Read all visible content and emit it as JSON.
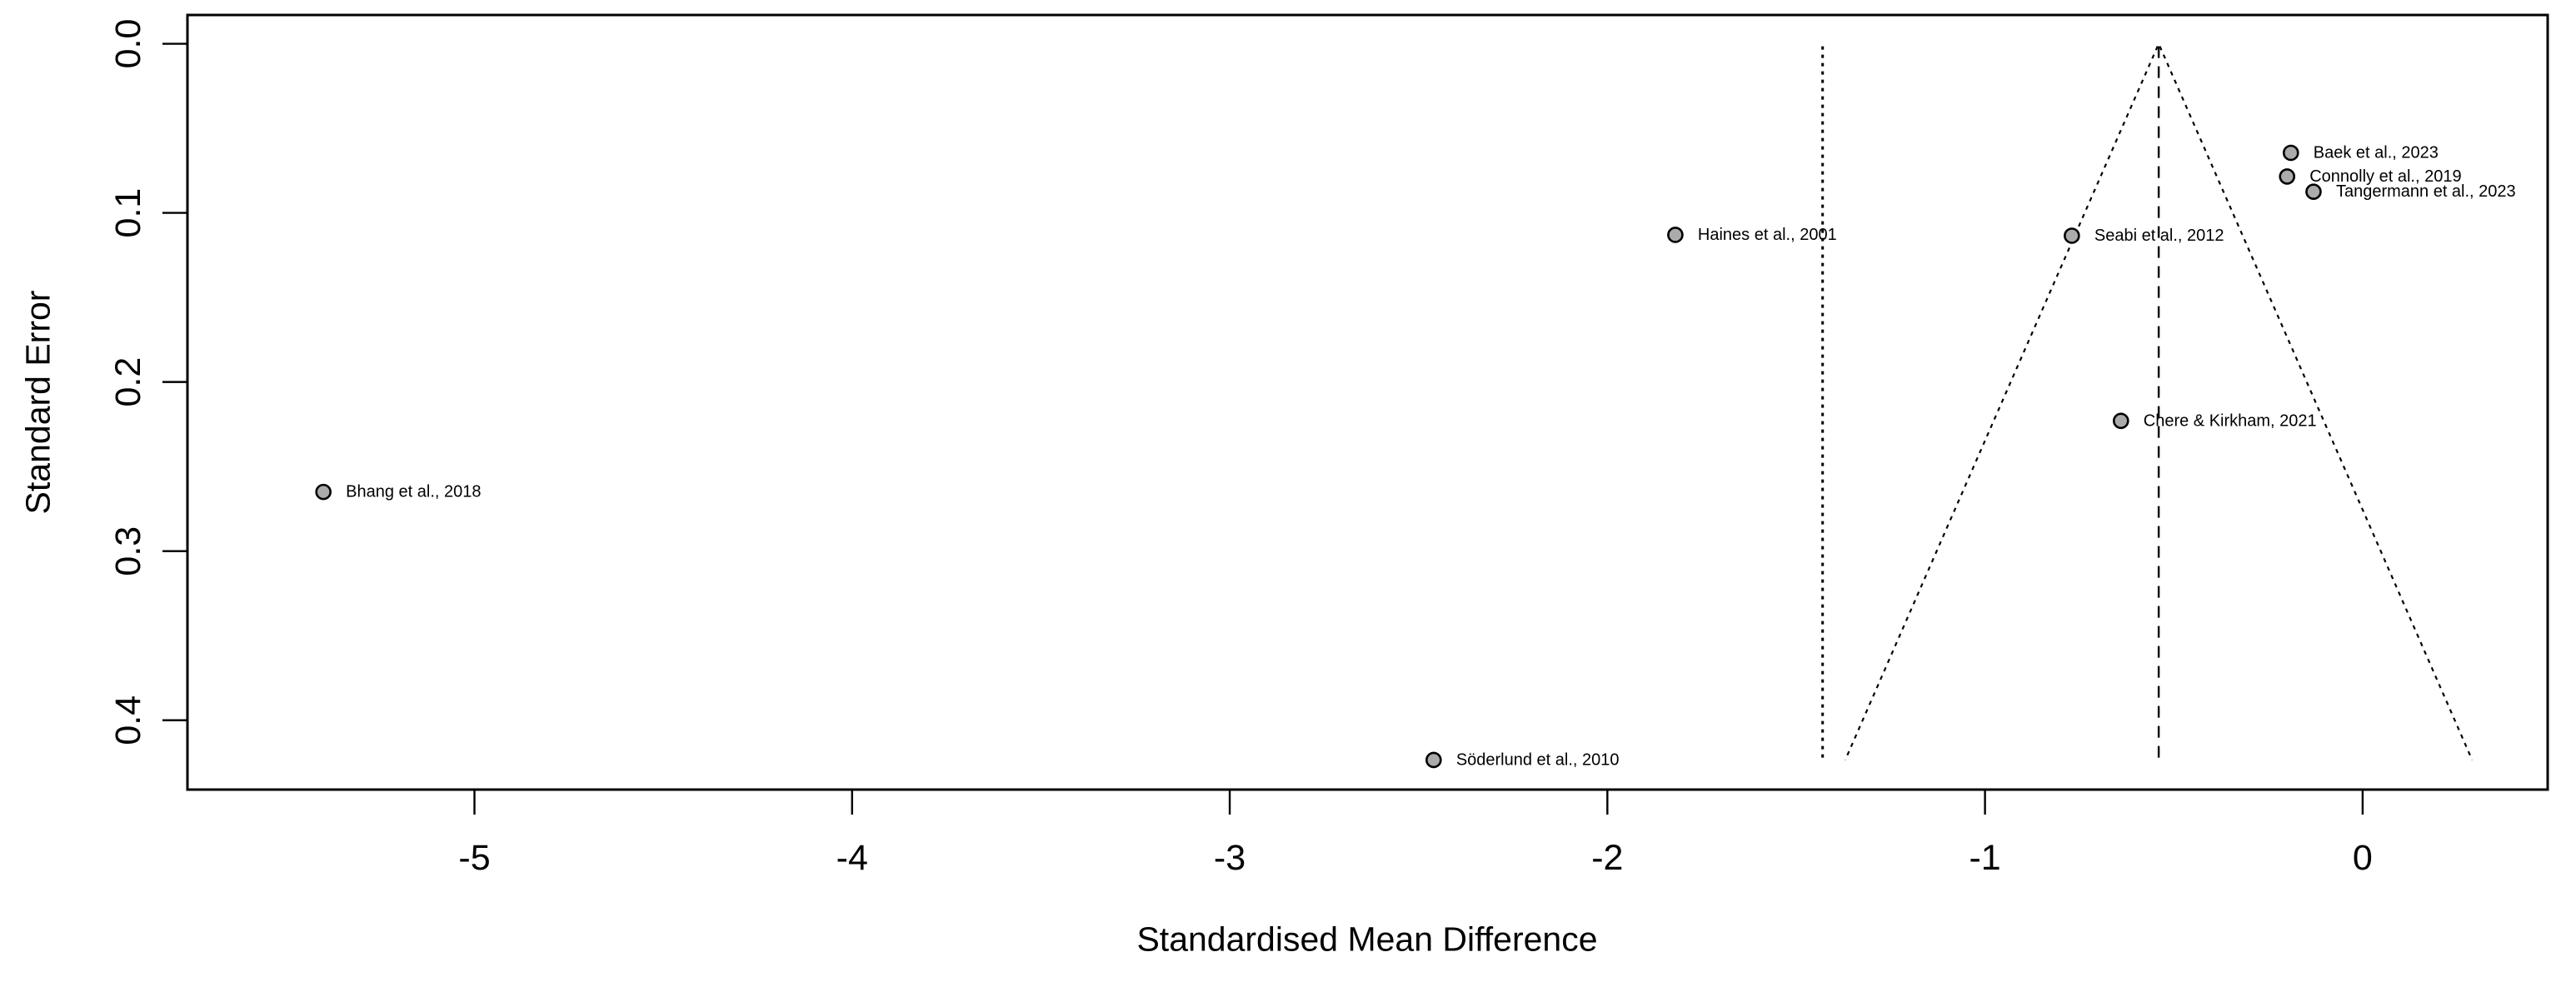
{
  "chart_data": {
    "type": "scatter",
    "subtype": "funnel-plot",
    "title": "",
    "xlabel": "Standardised Mean Difference",
    "ylabel": "Standard Error",
    "grid": "off",
    "legend": "none",
    "x_axis": {
      "range": [
        -5.76,
        0.49
      ],
      "ticks": [
        {
          "value": -5,
          "label": "-5"
        },
        {
          "value": -4,
          "label": "-4"
        },
        {
          "value": -3,
          "label": "-3"
        },
        {
          "value": -2,
          "label": "-2"
        },
        {
          "value": -1,
          "label": "-1"
        },
        {
          "value": 0,
          "label": "0"
        }
      ]
    },
    "y_axis": {
      "range": [
        -0.017,
        0.441
      ],
      "direction": "increasing-downward",
      "ticks": [
        {
          "value": 0.0,
          "label": "0.0"
        },
        {
          "value": 0.1,
          "label": "0.1"
        },
        {
          "value": 0.2,
          "label": "0.2"
        },
        {
          "value": 0.3,
          "label": "0.3"
        },
        {
          "value": 0.4,
          "label": "0.4"
        }
      ]
    },
    "points": [
      {
        "label": "Bhang et al., 2018",
        "x": -5.4,
        "se": 0.265
      },
      {
        "label": "Söderlund et al., 2010",
        "x": -2.46,
        "se": 0.4235
      },
      {
        "label": "Haines et al., 2001",
        "x": -1.82,
        "se": 0.113
      },
      {
        "label": "Seabi et al., 2012",
        "x": -0.77,
        "se": 0.1135
      },
      {
        "label": "Chere & Kirkham, 2021",
        "x": -0.64,
        "se": 0.223
      },
      {
        "label": "Baek et al., 2023",
        "x": -0.19,
        "se": 0.0645
      },
      {
        "label": "Connolly et al., 2019",
        "x": -0.2,
        "se": 0.0785
      },
      {
        "label": "Tangermann et al., 2023",
        "x": -0.13,
        "se": 0.0875
      }
    ],
    "funnel": {
      "center_x": -0.54,
      "ci_slope": 1.96,
      "se_top": 0.0015,
      "se_bottom": 0.4235,
      "center_line_style": "dashed",
      "edge_line_style": "dotted"
    },
    "reference_line": {
      "x": -1.43,
      "style": "dotted"
    },
    "colors": {
      "marker_fill": "#ababab",
      "marker_stroke": "#000000",
      "line": "#000000",
      "text": "#000000",
      "background": "#ffffff"
    }
  }
}
